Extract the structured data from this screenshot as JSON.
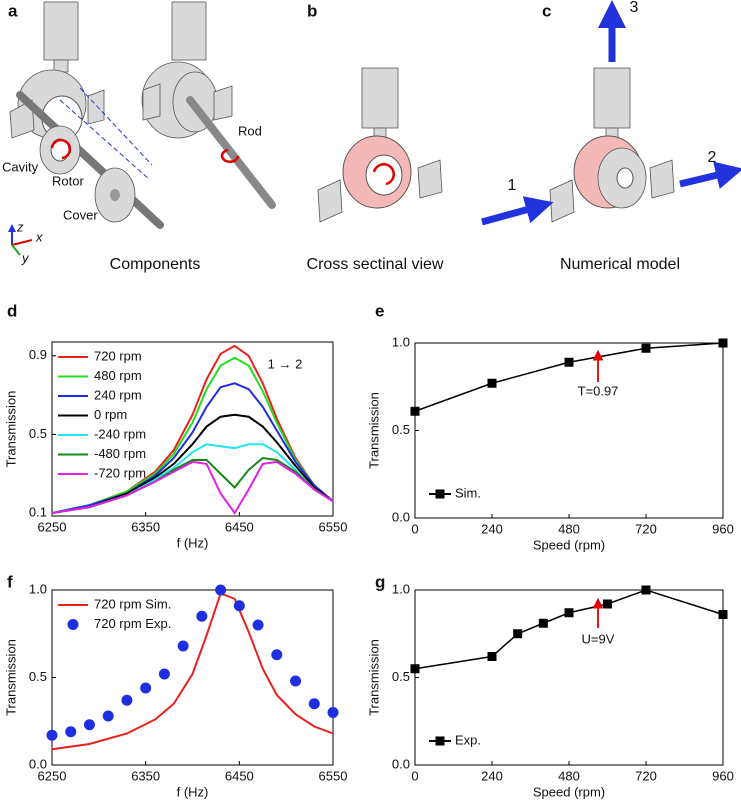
{
  "figure": {
    "panels": [
      "a",
      "b",
      "c"
    ],
    "captions": [
      "Components",
      "Cross sectinal view",
      "Numerical model"
    ],
    "parts": [
      "Cavity",
      "Rotor",
      "Cover",
      "Rod"
    ],
    "axes": [
      "z",
      "x",
      "y"
    ],
    "ports": [
      "1",
      "2",
      "3"
    ]
  },
  "chart_data": [
    {
      "type": "line",
      "panel_label": "d",
      "xlabel": "f (Hz)",
      "ylabel": "Transmission",
      "xlim": [
        6250,
        6550
      ],
      "xticks": [
        6250,
        6350,
        6450,
        6550
      ],
      "ylim": [
        0.085,
        0.97
      ],
      "yticks": [
        0.1,
        0.5,
        0.9
      ],
      "legend_loc": "upper left",
      "annotations": [
        {
          "text": "1 → 2",
          "color": "#000000"
        }
      ],
      "x": [
        6250,
        6290,
        6330,
        6360,
        6380,
        6400,
        6415,
        6430,
        6445,
        6460,
        6475,
        6490,
        6510,
        6530,
        6550
      ],
      "series": [
        {
          "name": "720 rpm",
          "color": "#e8211d",
          "mode": "line",
          "values": [
            0.1,
            0.14,
            0.21,
            0.31,
            0.42,
            0.6,
            0.78,
            0.91,
            0.95,
            0.9,
            0.76,
            0.58,
            0.38,
            0.24,
            0.16
          ]
        },
        {
          "name": "480 rpm",
          "color": "#22dd22",
          "mode": "line",
          "values": [
            0.1,
            0.14,
            0.21,
            0.3,
            0.4,
            0.56,
            0.73,
            0.85,
            0.89,
            0.85,
            0.72,
            0.56,
            0.37,
            0.24,
            0.16
          ]
        },
        {
          "name": "240 rpm",
          "color": "#1f2fe0",
          "mode": "line",
          "values": [
            0.1,
            0.14,
            0.2,
            0.29,
            0.38,
            0.51,
            0.64,
            0.74,
            0.76,
            0.73,
            0.64,
            0.52,
            0.36,
            0.24,
            0.16
          ]
        },
        {
          "name": "0 rpm",
          "color": "#000000",
          "mode": "line",
          "values": [
            0.1,
            0.13,
            0.2,
            0.28,
            0.35,
            0.45,
            0.54,
            0.59,
            0.6,
            0.59,
            0.54,
            0.46,
            0.34,
            0.23,
            0.16
          ]
        },
        {
          "name": "-240 rpm",
          "color": "#22e5f0",
          "mode": "line",
          "values": [
            0.1,
            0.13,
            0.19,
            0.27,
            0.33,
            0.41,
            0.45,
            0.44,
            0.43,
            0.45,
            0.45,
            0.41,
            0.32,
            0.22,
            0.16
          ]
        },
        {
          "name": "-480 rpm",
          "color": "#138a13",
          "mode": "line",
          "values": [
            0.1,
            0.13,
            0.19,
            0.26,
            0.32,
            0.37,
            0.37,
            0.3,
            0.23,
            0.32,
            0.38,
            0.37,
            0.31,
            0.22,
            0.16
          ]
        },
        {
          "name": "-720 rpm",
          "color": "#e21fe2",
          "mode": "line",
          "values": [
            0.1,
            0.13,
            0.19,
            0.26,
            0.31,
            0.36,
            0.35,
            0.2,
            0.1,
            0.22,
            0.35,
            0.36,
            0.3,
            0.22,
            0.16
          ]
        }
      ]
    },
    {
      "type": "line",
      "panel_label": "e",
      "xlabel": "Speed (rpm)",
      "ylabel": "Transmission",
      "xlim": [
        0,
        960
      ],
      "xticks": [
        0,
        240,
        480,
        720,
        960
      ],
      "ylim": [
        0,
        1
      ],
      "yticks": [
        {
          "value": 0,
          "label": "0.0"
        },
        0.5,
        {
          "value": 1,
          "label": "1.0"
        }
      ],
      "legend_loc": "lower left",
      "annotations": [
        {
          "text": "T=0.97",
          "color": "#e00000"
        }
      ],
      "x": [
        0,
        240,
        480,
        720,
        960
      ],
      "series": [
        {
          "name": "Sim.",
          "color": "#000000",
          "mode": "line-markers",
          "values": [
            0.61,
            0.77,
            0.89,
            0.97,
            1.0
          ]
        }
      ]
    },
    {
      "type": "line",
      "panel_label": "f",
      "xlabel": "f (Hz)",
      "ylabel": "Transmission",
      "xlim": [
        6250,
        6550
      ],
      "xticks": [
        6250,
        6350,
        6450,
        6550
      ],
      "ylim": [
        0,
        1
      ],
      "yticks": [
        {
          "value": 0,
          "label": "0.0"
        },
        0.5,
        {
          "value": 1,
          "label": "1.0"
        }
      ],
      "legend_loc": "upper left",
      "annotations": [],
      "series": [
        {
          "name": "720 rpm Sim.",
          "color": "#e8211d",
          "mode": "line",
          "x": [
            6250,
            6290,
            6330,
            6360,
            6380,
            6400,
            6415,
            6430,
            6445,
            6460,
            6475,
            6490,
            6510,
            6530,
            6550
          ],
          "values": [
            0.09,
            0.12,
            0.18,
            0.26,
            0.35,
            0.52,
            0.74,
            0.98,
            0.95,
            0.76,
            0.55,
            0.4,
            0.29,
            0.22,
            0.18
          ]
        },
        {
          "name": "720 rpm Exp.",
          "color": "#1f2fe0",
          "mode": "markers",
          "x": [
            6250,
            6270,
            6290,
            6310,
            6330,
            6350,
            6370,
            6390,
            6410,
            6430,
            6450,
            6470,
            6490,
            6510,
            6530,
            6550
          ],
          "values": [
            0.17,
            0.19,
            0.23,
            0.28,
            0.37,
            0.44,
            0.52,
            0.68,
            0.85,
            1.0,
            0.91,
            0.8,
            0.63,
            0.48,
            0.35,
            0.3
          ]
        }
      ]
    },
    {
      "type": "line",
      "panel_label": "g",
      "xlabel": "Speed (rpm)",
      "ylabel": "Transmission",
      "xlim": [
        0,
        960
      ],
      "xticks": [
        0,
        240,
        480,
        720,
        960
      ],
      "ylim": [
        0,
        1
      ],
      "yticks": [
        {
          "value": 0,
          "label": "0.0"
        },
        0.5,
        {
          "value": 1,
          "label": "1.0"
        }
      ],
      "legend_loc": "lower left",
      "annotations": [
        {
          "text": "U=9V",
          "color": "#e00000"
        }
      ],
      "x": [
        0,
        240,
        320,
        400,
        480,
        600,
        720,
        960
      ],
      "series": [
        {
          "name": "Exp.",
          "color": "#000000",
          "mode": "line-markers",
          "values": [
            0.55,
            0.62,
            0.75,
            0.81,
            0.87,
            0.92,
            1.0,
            0.86
          ]
        }
      ]
    }
  ]
}
